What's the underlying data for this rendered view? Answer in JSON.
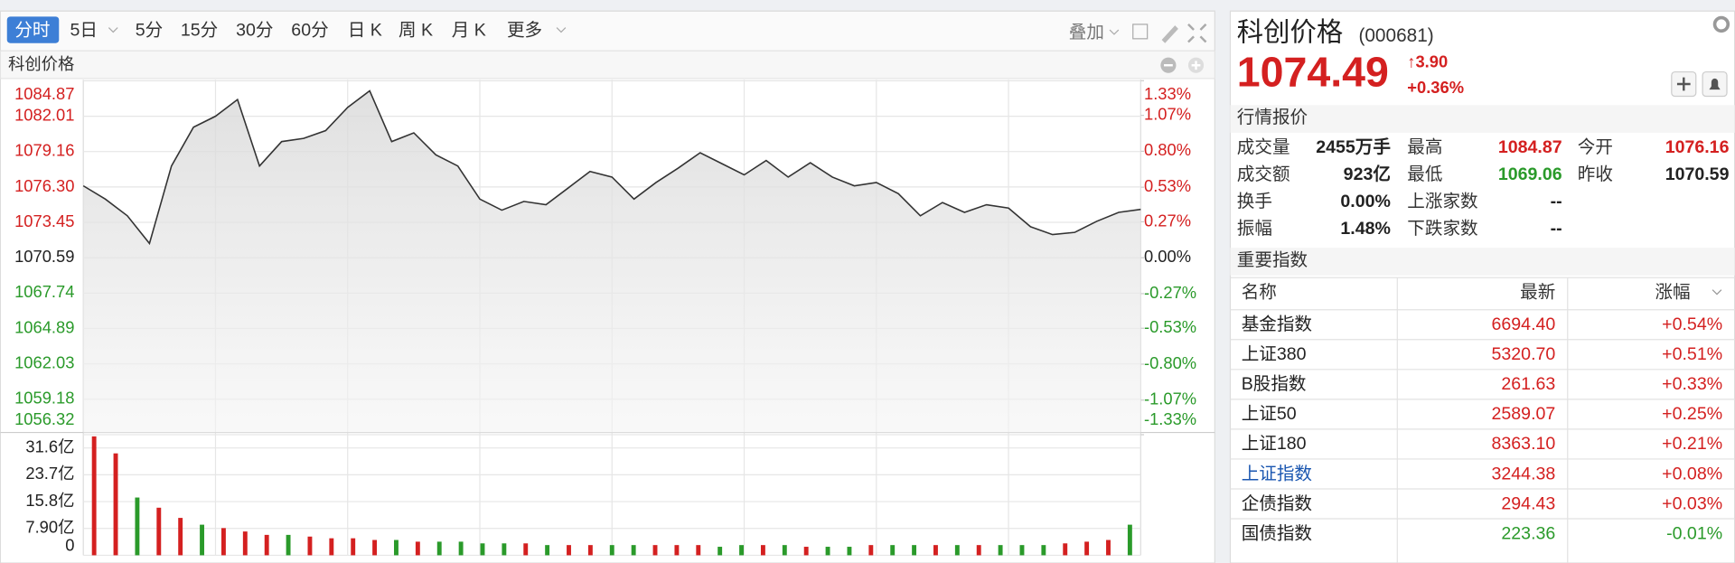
{
  "toolbar": {
    "tabs": [
      "分时",
      "5日",
      "5分",
      "15分",
      "30分",
      "60分",
      "日 K",
      "周 K",
      "月 K",
      "更多"
    ],
    "active": 0,
    "overlay": "叠加"
  },
  "chart_label": "科创价格",
  "price_chart": {
    "type": "line",
    "color": "#333333",
    "values": [
      1076.39,
      1075.32,
      1073.98,
      1071.75,
      1077.99,
      1081.12,
      1082.01,
      1083.35,
      1077.99,
      1079.96,
      1080.22,
      1080.85,
      1082.72,
      1084.06,
      1079.96,
      1080.67,
      1078.89,
      1077.99,
      1075.32,
      1074.43,
      1075.14,
      1074.87,
      1076.21,
      1077.55,
      1077.1,
      1075.32,
      1076.66,
      1077.82,
      1079.06,
      1078.17,
      1077.28,
      1078.44,
      1077.1,
      1078.26,
      1077.1,
      1076.39,
      1076.66,
      1075.76,
      1073.98,
      1075.05,
      1074.25,
      1074.87,
      1074.6,
      1073.09,
      1072.46,
      1072.64,
      1073.53,
      1074.25,
      1074.49
    ],
    "ylim": [
      1056.32,
      1084.87
    ],
    "yticks": [
      1084.87,
      1082.01,
      1079.16,
      {
        "value": 1076.3,
        "label": "1076.30"
      },
      1073.45,
      1070.59,
      1067.74,
      1064.89,
      1062.03,
      1059.18,
      1056.32
    ],
    "y2lim": [
      -1.33,
      1.33
    ],
    "y2ticks": [
      {
        "value": 1.33,
        "label": "1.33%"
      },
      {
        "value": 1.07,
        "label": "1.07%"
      },
      {
        "value": 0.8,
        "label": "0.80%"
      },
      {
        "value": 0.53,
        "label": "0.53%"
      },
      {
        "value": 0.27,
        "label": "0.27%"
      },
      {
        "value": 0,
        "label": "0.00%"
      },
      {
        "value": -0.27,
        "label": "-0.27%"
      },
      {
        "value": -0.53,
        "label": "-0.53%"
      },
      {
        "value": -0.8,
        "label": "-0.80%"
      },
      {
        "value": -1.07,
        "label": "-1.07%"
      },
      {
        "value": -1.33,
        "label": "-1.33%"
      }
    ],
    "grid": true
  },
  "volume_chart": {
    "type": "bar",
    "values": [
      35,
      30,
      17,
      14,
      11,
      9,
      8,
      7,
      6,
      6,
      5.5,
      5,
      5,
      4.5,
      4.5,
      4,
      4,
      4,
      3.5,
      3.5,
      3.5,
      3,
      3,
      3,
      3,
      3,
      3,
      3,
      3,
      2.5,
      3,
      3,
      3,
      2.5,
      2.5,
      2.5,
      3,
      3,
      3,
      3,
      3,
      3,
      3,
      3,
      3,
      3.5,
      4,
      4.5,
      9
    ],
    "colors": [
      "#d42020",
      "#d42020",
      "#2a9a2a",
      "#d42020",
      "#d42020",
      "#2a9a2a",
      "#d42020",
      "#d42020",
      "#d42020",
      "#2a9a2a",
      "#d42020",
      "#d42020",
      "#d42020",
      "#d42020",
      "#2a9a2a",
      "#d42020",
      "#2a9a2a",
      "#2a9a2a",
      "#2a9a2a",
      "#2a9a2a",
      "#d42020",
      "#2a9a2a",
      "#d42020",
      "#d42020",
      "#2a9a2a",
      "#2a9a2a",
      "#d42020",
      "#d42020",
      "#d42020",
      "#2a9a2a",
      "#2a9a2a",
      "#d42020",
      "#2a9a2a",
      "#d42020",
      "#2a9a2a",
      "#2a9a2a",
      "#d42020",
      "#2a9a2a",
      "#2a9a2a",
      "#d42020",
      "#2a9a2a",
      "#d42020",
      "#2a9a2a",
      "#2a9a2a",
      "#2a9a2a",
      "#d42020",
      "#d42020",
      "#d42020",
      "#2a9a2a"
    ],
    "ylim": [
      0,
      35.5
    ],
    "yticks": [
      {
        "value": 31.6,
        "label": "31.6亿"
      },
      {
        "value": 23.7,
        "label": "23.7亿"
      },
      {
        "value": 15.8,
        "label": "15.8亿"
      },
      {
        "value": 7.9,
        "label": "7.90亿"
      },
      0
    ]
  },
  "quote": {
    "name": "科创价格",
    "code": "(000681)",
    "price": "1074.49",
    "change": "↑3.90",
    "change_pct": "+0.36%",
    "section": "行情报价",
    "rows": [
      [
        {
          "label": "成交量",
          "value": "2455万手"
        },
        {
          "label": "最高",
          "value": "1084.87",
          "color": "#d42020"
        },
        {
          "label": "今开",
          "value": "1076.16",
          "color": "#d42020"
        }
      ],
      [
        {
          "label": "成交额",
          "value": "923亿"
        },
        {
          "label": "最低",
          "value": "1069.06",
          "color": "#2a9a2a"
        },
        {
          "label": "昨收",
          "value": "1070.59"
        }
      ],
      [
        {
          "label": "换手",
          "value": "0.00%"
        },
        {
          "label": "上涨家数",
          "value": "--"
        }
      ],
      [
        {
          "label": "振幅",
          "value": "1.48%"
        },
        {
          "label": "下跌家数",
          "value": "--"
        }
      ]
    ]
  },
  "indices": {
    "title": "重要指数",
    "header": [
      "名称",
      "最新",
      "涨幅"
    ],
    "rows": [
      [
        "基金指数",
        "6694.40",
        "+0.54%"
      ],
      [
        "上证380",
        "5320.70",
        "+0.51%"
      ],
      [
        "B股指数",
        "261.63",
        "+0.33%"
      ],
      [
        "上证50",
        "2589.07",
        "+0.25%"
      ],
      [
        "上证180",
        "8363.10",
        "+0.21%"
      ],
      [
        "上证指数",
        "3244.38",
        "+0.08%"
      ],
      [
        "企债指数",
        "294.43",
        "+0.03%"
      ],
      [
        "国债指数",
        "223.36",
        "-0.01%"
      ]
    ]
  }
}
